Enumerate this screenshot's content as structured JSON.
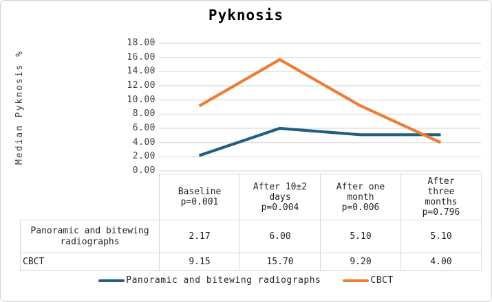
{
  "chart_data": {
    "type": "line",
    "title": "Pyknosis",
    "ylabel": "Median Pyknosis %",
    "xlabel": "",
    "ylim": [
      0,
      18
    ],
    "ytick_step": 2,
    "yticks": [
      "18.00",
      "16.00",
      "14.00",
      "12.00",
      "10.00",
      "8.00",
      "6.00",
      "4.00",
      "2.00",
      "0.00"
    ],
    "grid": true,
    "legend_position": "bottom",
    "categories": [
      "Baseline p=0.001",
      "After 10±2 days p=0.004",
      "After one month p=0.006",
      "After three months p=0.796"
    ],
    "category_lines": [
      [
        "Baseline",
        "p=0.001"
      ],
      [
        "After 10±2",
        "days",
        "p=0.004"
      ],
      [
        "After one",
        "month",
        "p=0.006"
      ],
      [
        "After",
        "three",
        "months",
        "p=0.796"
      ]
    ],
    "series": [
      {
        "name": "Panoramic and bitewing radiographs",
        "color": "#20607F",
        "values": [
          2.17,
          6.0,
          5.1,
          5.1
        ]
      },
      {
        "name": "CBCT",
        "color": "#ED7D31",
        "values": [
          9.15,
          15.7,
          9.2,
          4.0
        ]
      }
    ]
  },
  "colors": {
    "grid": "#d9d9d9",
    "table_border": "#d9d9d9",
    "blue_series": "#20607F",
    "orange_series": "#ED7D31"
  }
}
